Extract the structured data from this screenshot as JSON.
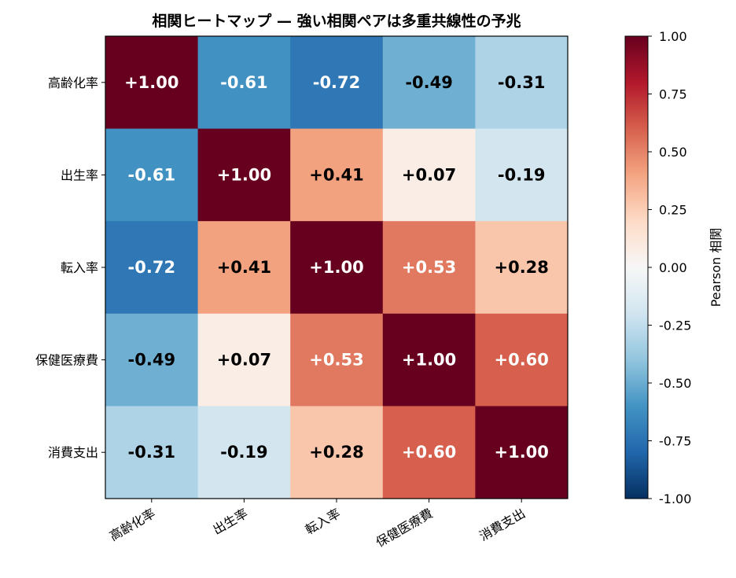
{
  "chart_data": {
    "type": "heatmap",
    "title": "相関ヒートマップ — 強い相関ペアは多重共線性の予兆",
    "rows": [
      "高齢化率",
      "出生率",
      "転入率",
      "保健医療費",
      "消費支出"
    ],
    "columns": [
      "高齢化率",
      "出生率",
      "転入率",
      "保健医療費",
      "消費支出"
    ],
    "values": [
      [
        1.0,
        -0.61,
        -0.72,
        -0.49,
        -0.31
      ],
      [
        -0.61,
        1.0,
        0.41,
        0.07,
        -0.19
      ],
      [
        -0.72,
        0.41,
        1.0,
        0.53,
        0.28
      ],
      [
        -0.49,
        0.07,
        0.53,
        1.0,
        0.6
      ],
      [
        -0.31,
        -0.19,
        0.28,
        0.6,
        1.0
      ]
    ],
    "cell_labels": [
      [
        "+1.00",
        "-0.61",
        "-0.72",
        "-0.49",
        "-0.31"
      ],
      [
        "-0.61",
        "+1.00",
        "+0.41",
        "+0.07",
        "-0.19"
      ],
      [
        "-0.72",
        "+0.41",
        "+1.00",
        "+0.53",
        "+0.28"
      ],
      [
        "-0.49",
        "+0.07",
        "+0.53",
        "+1.00",
        "+0.60"
      ],
      [
        "-0.31",
        "-0.19",
        "+0.28",
        "+0.60",
        "+1.00"
      ]
    ],
    "colormap": "RdBu_r",
    "vmin": -1.0,
    "vmax": 1.0,
    "colorbar": {
      "label": "Pearson 相関",
      "ticks": [
        "1.00",
        "0.75",
        "0.50",
        "0.25",
        "0.00",
        "-0.25",
        "-0.50",
        "-0.75",
        "-1.00"
      ],
      "tick_values": [
        1.0,
        0.75,
        0.5,
        0.25,
        0.0,
        -0.25,
        -0.5,
        -0.75,
        -1.0
      ]
    },
    "x_tick_rotation_deg": 30,
    "grid": false
  }
}
